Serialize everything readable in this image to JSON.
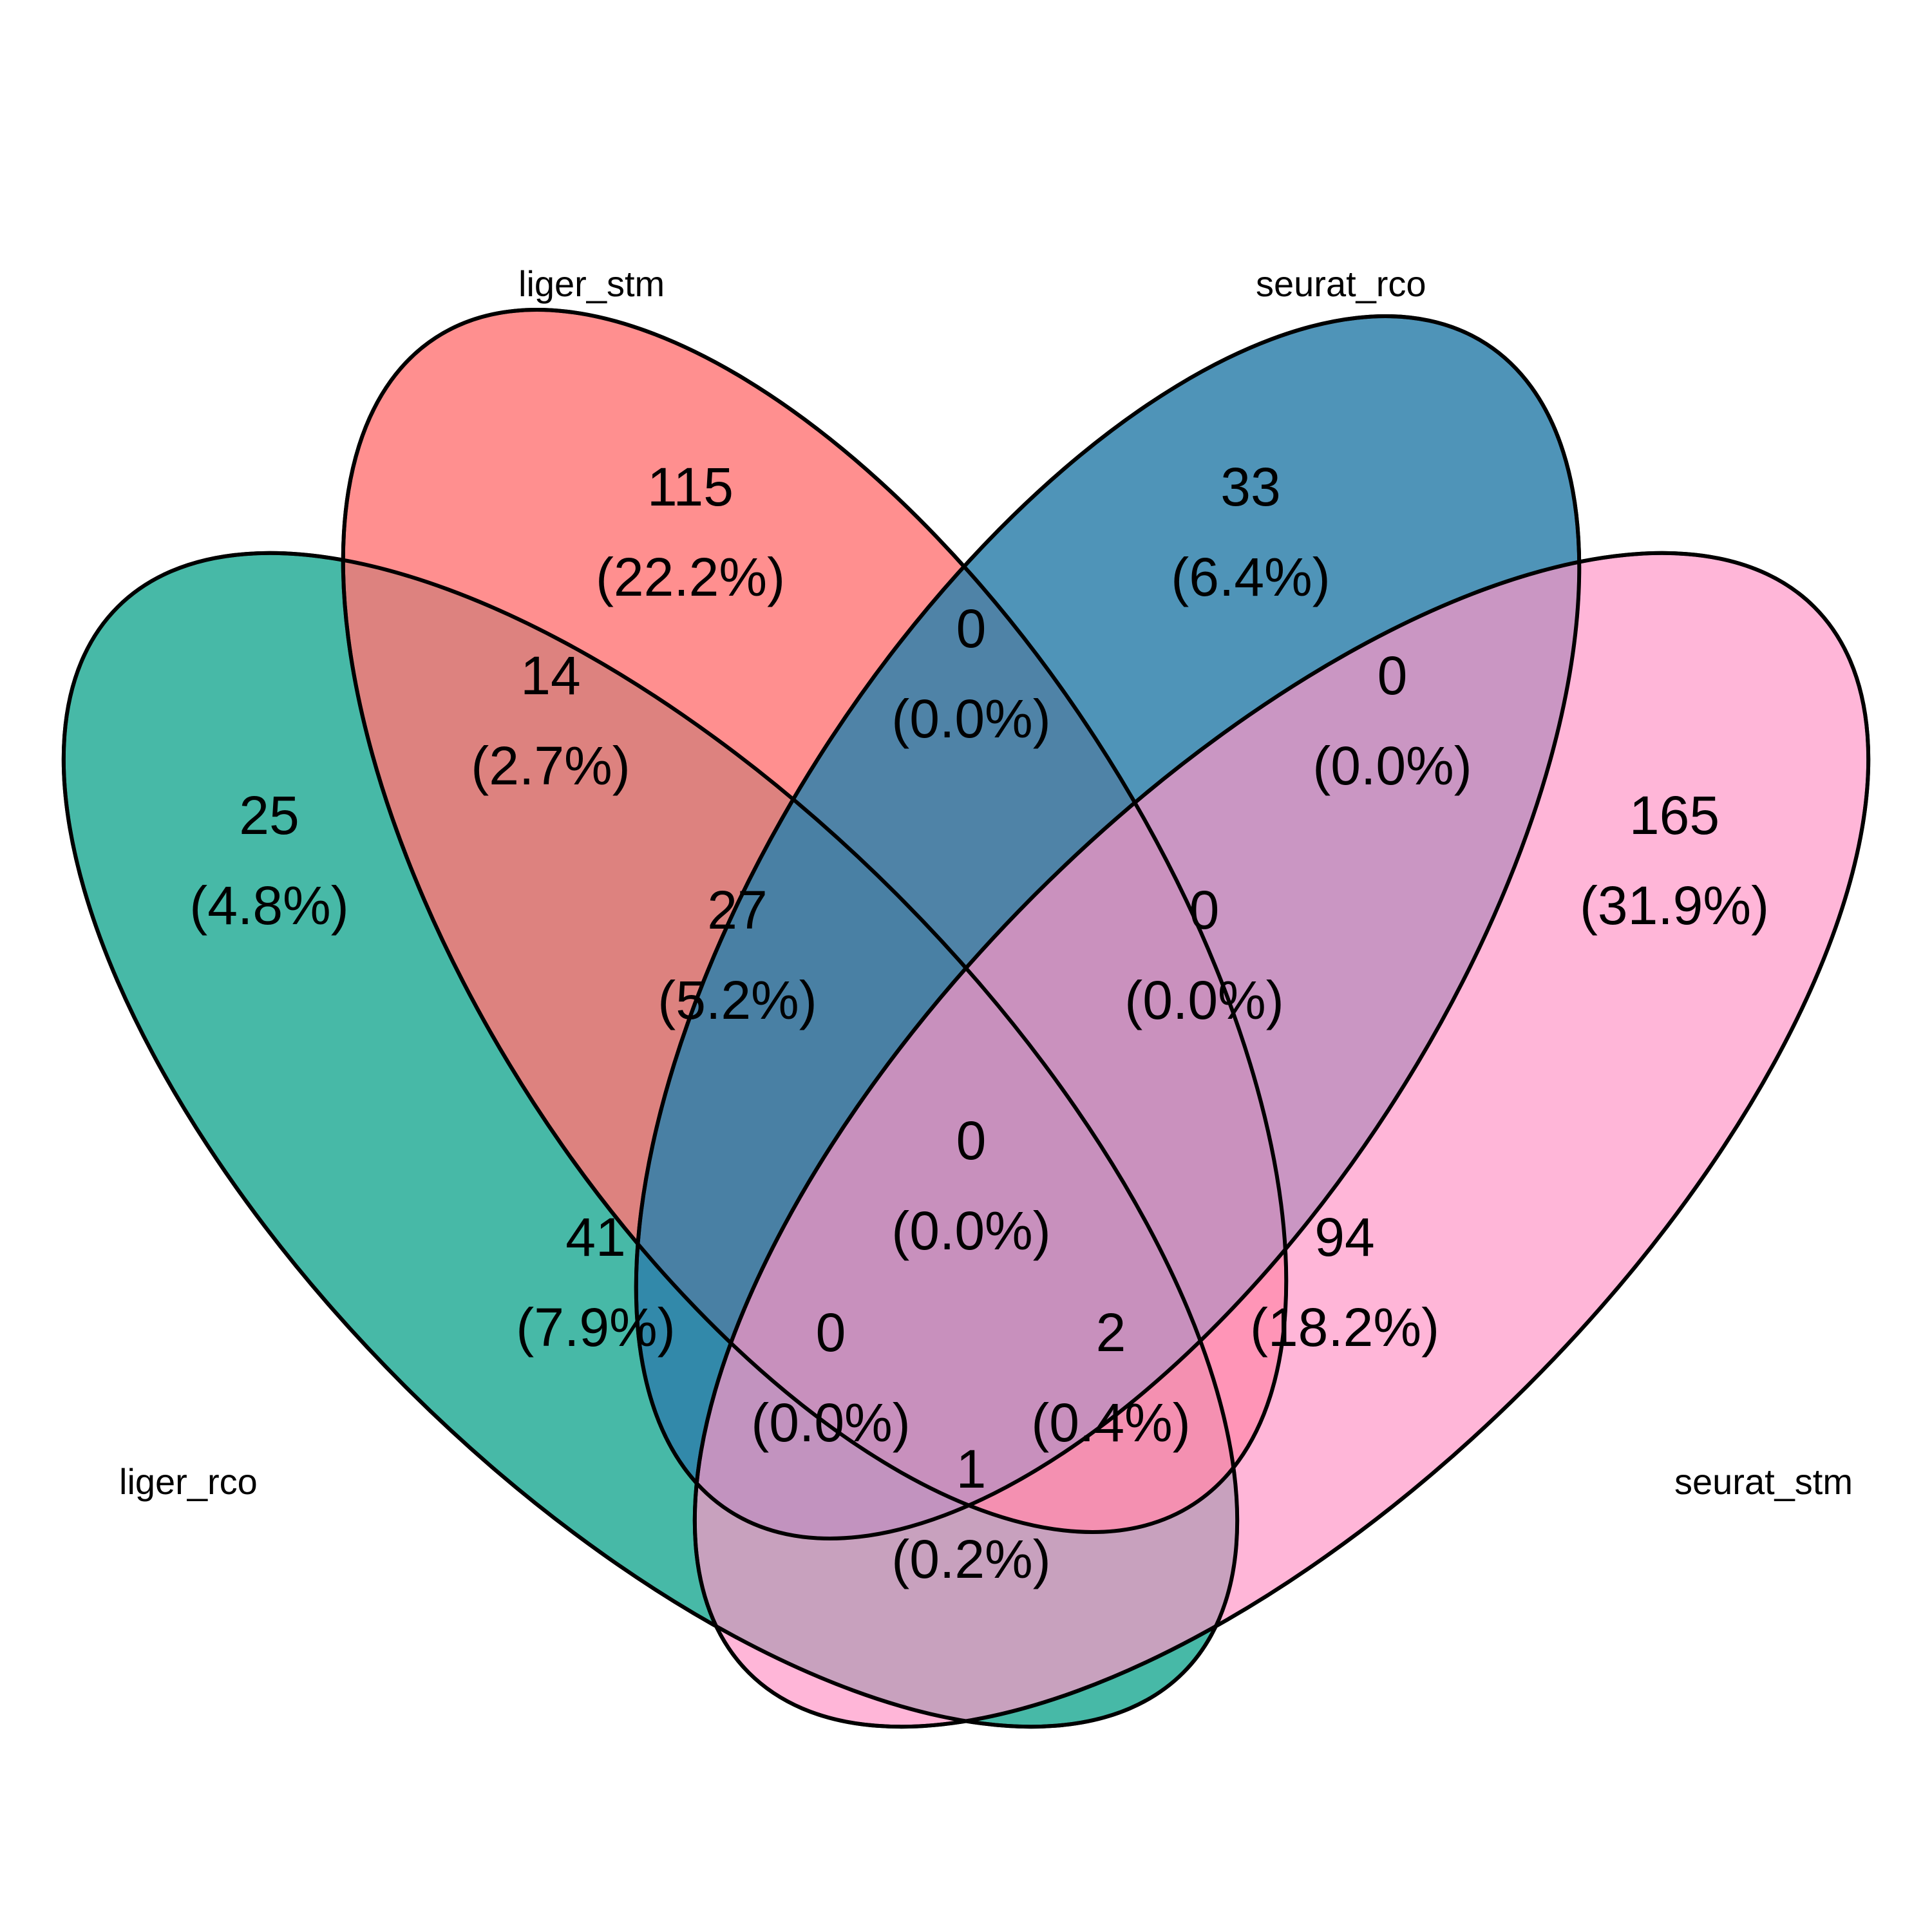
{
  "sets": [
    {
      "key": "liger_rco",
      "label": "liger_rco",
      "color": "#21AB95"
    },
    {
      "key": "liger_stm",
      "label": "liger_stm",
      "color": "#FF6B6B"
    },
    {
      "key": "seurat_rco",
      "label": "seurat_rco",
      "color": "#1F77A4"
    },
    {
      "key": "seurat_stm",
      "label": "seurat_stm",
      "color": "#FF8EC3"
    }
  ],
  "regions": [
    {
      "id": "liger_rco_only",
      "count": "25",
      "percent": "(4.8%)"
    },
    {
      "id": "liger_stm_only",
      "count": "115",
      "percent": "(22.2%)"
    },
    {
      "id": "seurat_rco_only",
      "count": "33",
      "percent": "(6.4%)"
    },
    {
      "id": "seurat_stm_only",
      "count": "165",
      "percent": "(31.9%)"
    },
    {
      "id": "lr_ls",
      "count": "14",
      "percent": "(2.7%)"
    },
    {
      "id": "ls_sr",
      "count": "0",
      "percent": "(0.0%)"
    },
    {
      "id": "sr_ss",
      "count": "0",
      "percent": "(0.0%)"
    },
    {
      "id": "lr_ls_sr",
      "count": "27",
      "percent": "(5.2%)"
    },
    {
      "id": "ls_sr_ss",
      "count": "0",
      "percent": "(0.0%)"
    },
    {
      "id": "all_four",
      "count": "0",
      "percent": "(0.0%)"
    },
    {
      "id": "lr_sr",
      "count": "41",
      "percent": "(7.9%)"
    },
    {
      "id": "ls_ss",
      "count": "94",
      "percent": "(18.2%)"
    },
    {
      "id": "lr_sr_ss",
      "count": "0",
      "percent": "(0.0%)"
    },
    {
      "id": "lr_ls_ss",
      "count": "2",
      "percent": "(0.4%)"
    },
    {
      "id": "lr_ss",
      "count": "1",
      "percent": "(0.2%)"
    }
  ]
}
